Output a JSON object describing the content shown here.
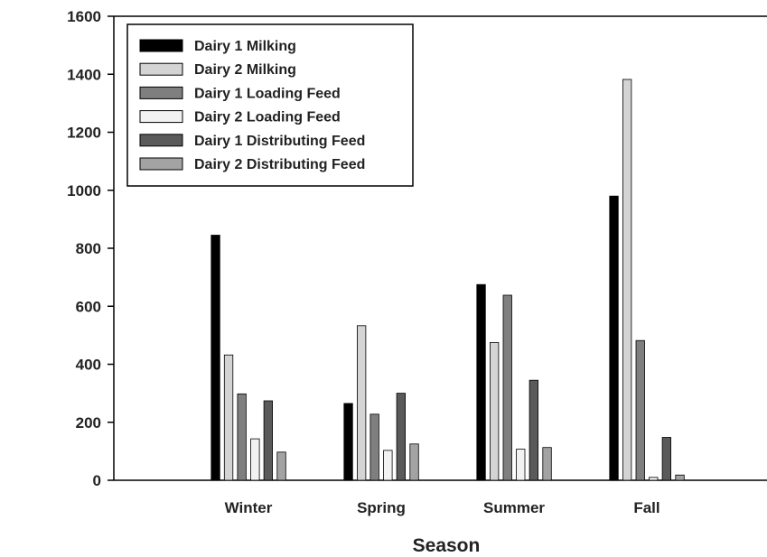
{
  "chart_data": {
    "type": "bar",
    "title": "",
    "xlabel": "Season",
    "ylabel": "",
    "ylim": [
      0,
      1600
    ],
    "yticks": [
      0,
      200,
      400,
      600,
      800,
      1000,
      1200,
      1400,
      1600
    ],
    "categories": [
      "Winter",
      "Spring",
      "Summer",
      "Fall"
    ],
    "legend_position": "top-left",
    "grid": false,
    "series": [
      {
        "name": "Dairy 1 Milking",
        "color": "#000000",
        "values": [
          845,
          265,
          675,
          980
        ]
      },
      {
        "name": "Dairy 2 Milking",
        "color": "#d4d4d4",
        "values": [
          432,
          533,
          475,
          1382
        ]
      },
      {
        "name": "Dairy 1 Loading Feed",
        "color": "#7f7f7f",
        "values": [
          298,
          228,
          638,
          482
        ]
      },
      {
        "name": "Dairy 2 Loading Feed",
        "color": "#f2f2f2",
        "values": [
          143,
          103,
          107,
          10
        ]
      },
      {
        "name": "Dairy 1 Distributing Feed",
        "color": "#5a5a5a",
        "values": [
          274,
          300,
          345,
          148
        ]
      },
      {
        "name": "Dairy 2 Distributing Feed",
        "color": "#a3a3a3",
        "values": [
          97,
          125,
          113,
          18
        ]
      }
    ]
  }
}
